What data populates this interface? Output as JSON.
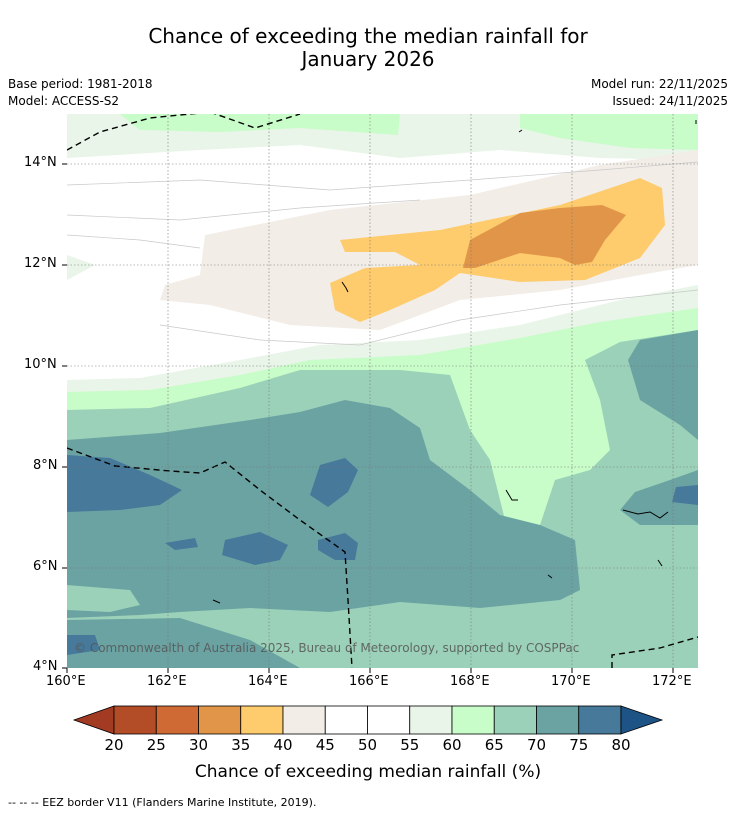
{
  "title_line1": "Chance of exceeding the median rainfall for",
  "title_line2": "January 2026",
  "base_period": "Base period: 1981-2018",
  "model": "Model: ACCESS-S2",
  "model_run": "Model run: 22/11/2025",
  "issued": "Issued: 24/11/2025",
  "map": {
    "lat_labels": [
      "14°N",
      "12°N",
      "10°N",
      "8°N",
      "6°N",
      "4°N"
    ],
    "lon_labels": [
      "160°E",
      "162°E",
      "164°E",
      "166°E",
      "168°E",
      "170°E",
      "172°E"
    ],
    "copyright": "© Commonwealth of Australia 2025, Bureau of Meteorology, supported by COSPPac"
  },
  "colorbar": {
    "title": "Chance of exceeding median rainfall (%)",
    "ticks": [
      "20",
      "25",
      "30",
      "35",
      "40",
      "45",
      "50",
      "55",
      "60",
      "65",
      "70",
      "75",
      "80"
    ],
    "colors": [
      "#a33a22",
      "#b24d27",
      "#cf6a34",
      "#e19548",
      "#fecb6d",
      "#f2ede6",
      "#ffffff",
      "#ffffff",
      "#e9f5e8",
      "#c8fcc8",
      "#9bd1b8",
      "#6ba3a3",
      "#46799a",
      "#1d5485"
    ]
  },
  "footnote": "--  --  -- EEZ border V11 (Flanders Marine Institute, 2019)."
}
